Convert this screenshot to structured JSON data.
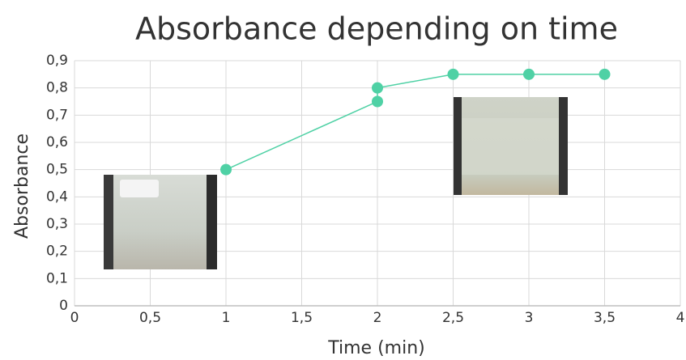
{
  "chart_data": {
    "type": "line",
    "title": "Absorbance depending on time",
    "xlabel": "Time (min)",
    "ylabel": "Absorbance",
    "x": [
      1,
      2,
      2,
      2.5,
      3,
      3.5
    ],
    "series": [
      {
        "color": "#4fd1a5",
        "values": [
          0.5,
          0.75,
          0.8,
          0.85,
          0.85,
          0.85
        ]
      }
    ],
    "xlim": [
      0,
      4
    ],
    "xticks": [
      0,
      {
        "value": 0.5,
        "label": "0,5"
      },
      1,
      {
        "value": 1.5,
        "label": "1,5"
      },
      2,
      {
        "value": 2.5,
        "label": "2,5"
      },
      3,
      {
        "value": 3.5,
        "label": "3,5"
      },
      4
    ],
    "ylim": [
      0,
      0.9
    ],
    "yticks": [
      0,
      {
        "value": 0.1,
        "label": "0,1"
      },
      {
        "value": 0.2,
        "label": "0,2"
      },
      {
        "value": 0.3,
        "label": "0,3"
      },
      {
        "value": 0.4,
        "label": "0,4"
      },
      {
        "value": 0.5,
        "label": "0,5"
      },
      {
        "value": 0.6,
        "label": "0,6"
      },
      {
        "value": 0.7,
        "label": "0,7"
      },
      {
        "value": 0.8,
        "label": "0,8"
      },
      {
        "value": 0.9,
        "label": "0,9"
      }
    ],
    "grid": true
  }
}
